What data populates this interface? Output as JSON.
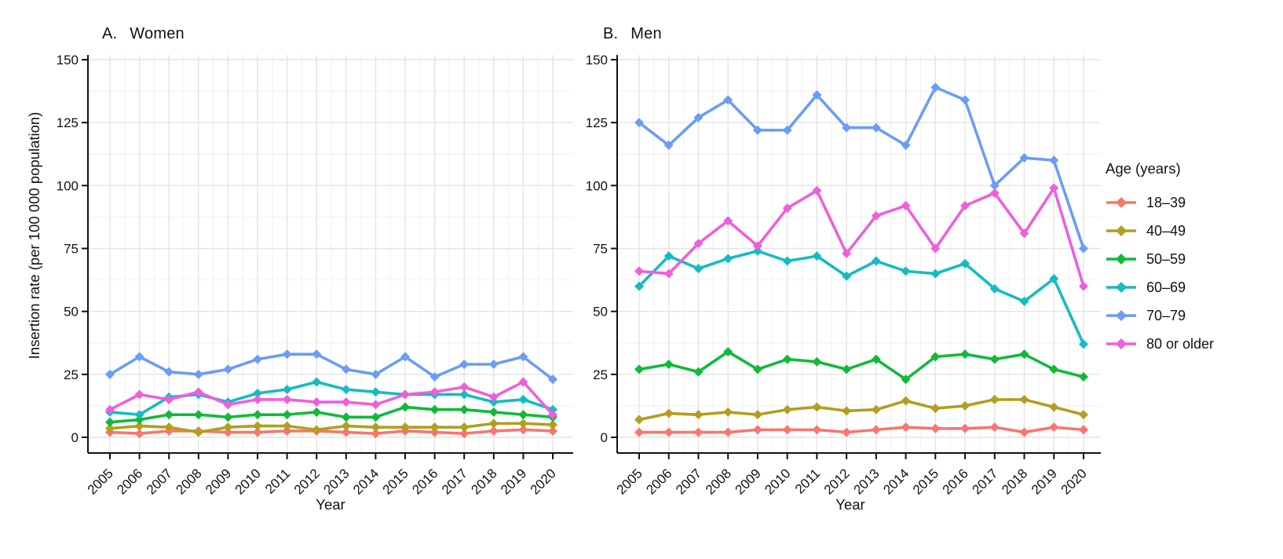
{
  "axes": {
    "y_label": "Insertion rate (per 100 000 population)",
    "x_label": "Year",
    "y_ticks": [
      0,
      25,
      50,
      75,
      100,
      125,
      150
    ],
    "x_ticks": [
      2005,
      2006,
      2007,
      2008,
      2009,
      2010,
      2011,
      2012,
      2013,
      2014,
      2015,
      2016,
      2017,
      2018,
      2019,
      2020
    ]
  },
  "legend": {
    "title": "Age (years)",
    "entries": [
      {
        "label": "18–39",
        "color": "#F8766D"
      },
      {
        "label": "40–49",
        "color": "#B39E1E"
      },
      {
        "label": "50–59",
        "color": "#10BA38"
      },
      {
        "label": "60–69",
        "color": "#14BCC2"
      },
      {
        "label": "70–79",
        "color": "#6B9CF7"
      },
      {
        "label": "80 or older",
        "color": "#EF5FDC"
      }
    ]
  },
  "chart_data": [
    {
      "type": "line",
      "title_letter": "A.",
      "title_text": "Women",
      "xlabel": "Year",
      "ylabel": "Insertion rate (per 100 000 population)",
      "ylim": [
        0,
        150
      ],
      "grid": true,
      "x": [
        2005,
        2006,
        2007,
        2008,
        2009,
        2010,
        2011,
        2012,
        2013,
        2014,
        2015,
        2016,
        2017,
        2018,
        2019,
        2020
      ],
      "series": [
        {
          "name": "18–39",
          "color": "#F8766D",
          "values": [
            2,
            1.5,
            2.5,
            2.5,
            2,
            2,
            2.5,
            2.5,
            2,
            1.5,
            2.5,
            2,
            1.5,
            2.5,
            3,
            2.5
          ]
        },
        {
          "name": "40–49",
          "color": "#B39E1E",
          "values": [
            3.5,
            4.5,
            4,
            2,
            4,
            4.5,
            4.5,
            3,
            4.5,
            4,
            4,
            4,
            4,
            5.5,
            5.5,
            5
          ]
        },
        {
          "name": "50–59",
          "color": "#10BA38",
          "values": [
            6,
            7,
            9,
            9,
            8,
            9,
            9,
            10,
            8,
            8,
            12,
            11,
            11,
            10,
            9,
            8
          ]
        },
        {
          "name": "60–69",
          "color": "#14BCC2",
          "values": [
            10,
            9,
            16,
            17,
            14,
            17.5,
            19,
            22,
            19,
            18,
            17,
            17,
            17,
            14,
            15,
            11
          ]
        },
        {
          "name": "70–79",
          "color": "#6B9CF7",
          "values": [
            25,
            32,
            26,
            25,
            27,
            31,
            33,
            33,
            27,
            25,
            32,
            24,
            29,
            29,
            32,
            23
          ]
        },
        {
          "name": "80 or older",
          "color": "#EF5FDC",
          "values": [
            11,
            17,
            15,
            18,
            13,
            15,
            15,
            14,
            14,
            13,
            17,
            18,
            20,
            16,
            22,
            9
          ]
        }
      ]
    },
    {
      "type": "line",
      "title_letter": "B.",
      "title_text": "Men",
      "xlabel": "Year",
      "ylabel": "Insertion rate (per 100 000 population)",
      "ylim": [
        0,
        150
      ],
      "grid": true,
      "x": [
        2005,
        2006,
        2007,
        2008,
        2009,
        2010,
        2011,
        2012,
        2013,
        2014,
        2015,
        2016,
        2017,
        2018,
        2019,
        2020
      ],
      "series": [
        {
          "name": "18–39",
          "color": "#F8766D",
          "values": [
            2,
            2,
            2,
            2,
            3,
            3,
            3,
            2,
            3,
            4,
            3.5,
            3.5,
            4,
            2,
            4,
            3
          ]
        },
        {
          "name": "40–49",
          "color": "#B39E1E",
          "values": [
            7,
            9.5,
            9,
            10,
            9,
            11,
            12,
            10.5,
            11,
            14.5,
            11.5,
            12.5,
            15,
            15,
            12,
            9
          ]
        },
        {
          "name": "50–59",
          "color": "#10BA38",
          "values": [
            27,
            29,
            26,
            34,
            27,
            31,
            30,
            27,
            31,
            23,
            32,
            33,
            31,
            33,
            27,
            24
          ]
        },
        {
          "name": "60–69",
          "color": "#14BCC2",
          "values": [
            60,
            72,
            67,
            71,
            74,
            70,
            72,
            64,
            70,
            66,
            65,
            69,
            59,
            54,
            63,
            37
          ]
        },
        {
          "name": "70–79",
          "color": "#6B9CF7",
          "values": [
            125,
            116,
            127,
            134,
            122,
            122,
            136,
            123,
            123,
            116,
            139,
            134,
            100,
            111,
            110,
            75
          ]
        },
        {
          "name": "80 or older",
          "color": "#EF5FDC",
          "values": [
            66,
            65,
            77,
            86,
            76,
            91,
            98,
            73,
            88,
            92,
            75,
            92,
            97,
            81,
            99,
            60
          ]
        }
      ]
    }
  ]
}
